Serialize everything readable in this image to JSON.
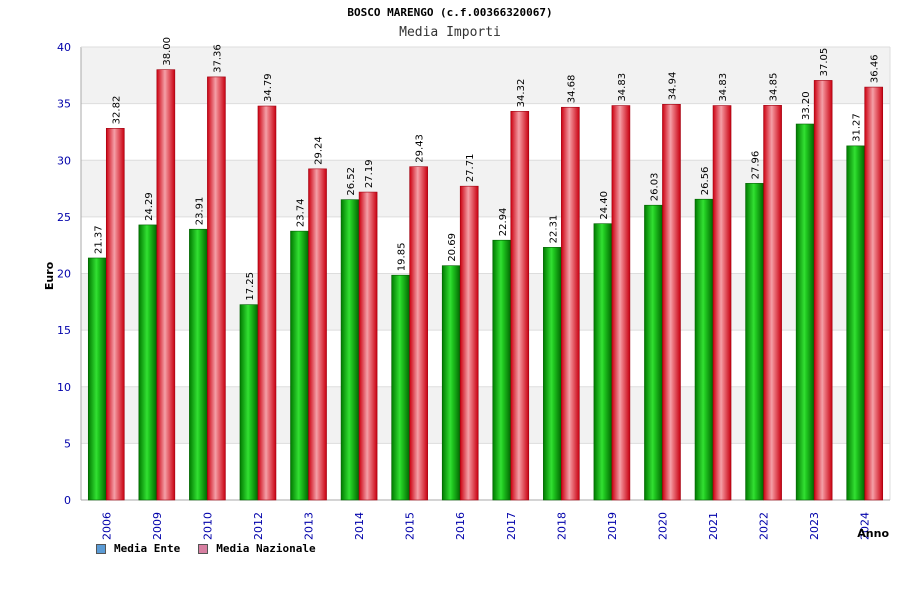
{
  "chart_data": {
    "type": "bar",
    "title": "BOSCO MARENGO (c.f.00366320067)",
    "subtitle": "Media Importi",
    "xlabel": "Anno",
    "ylabel": "Euro",
    "ylim": [
      0,
      40
    ],
    "yticks": [
      0,
      5,
      10,
      15,
      20,
      25,
      30,
      35,
      40
    ],
    "grid": true,
    "legend_position": "bottom-left",
    "categories": [
      "2006",
      "2009",
      "2010",
      "2012",
      "2013",
      "2014",
      "2015",
      "2016",
      "2017",
      "2018",
      "2019",
      "2020",
      "2021",
      "2022",
      "2023",
      "2024"
    ],
    "value_labels": {
      "ente": [
        "21.37",
        "24.29",
        "23.91",
        "17.25",
        "23.74",
        "26.52",
        "19.85",
        "20.69",
        "22.94",
        "22.31",
        "24.40",
        "26.03",
        "26.56",
        "27.96",
        "33.20",
        "31.27"
      ],
      "nazionale": [
        "32.82",
        "38.00",
        "37.36",
        "34.79",
        "29.24",
        "27.19",
        "29.43",
        "27.71",
        "34.32",
        "34.68",
        "34.83",
        "34.94",
        "34.83",
        "34.85",
        "37.05",
        "36.46"
      ]
    },
    "series": [
      {
        "name": "Media Ente",
        "color": "#00aa00",
        "legend_color": "#5b9bd5",
        "values": [
          21.37,
          24.29,
          23.91,
          17.25,
          23.74,
          26.52,
          19.85,
          20.69,
          22.94,
          22.31,
          24.4,
          26.03,
          26.56,
          27.96,
          33.2,
          31.27
        ]
      },
      {
        "name": "Media Nazionale",
        "color": "#e8141e",
        "legend_color": "#d77fa1",
        "values": [
          32.82,
          38.0,
          37.36,
          34.79,
          29.24,
          27.19,
          29.43,
          27.71,
          34.32,
          34.68,
          34.83,
          34.94,
          34.83,
          34.85,
          37.05,
          36.46
        ]
      }
    ]
  },
  "colors": {
    "axis_label_blue": "#0000aa",
    "band_gray": "#f2f2f2",
    "grid": "#dddddd"
  }
}
